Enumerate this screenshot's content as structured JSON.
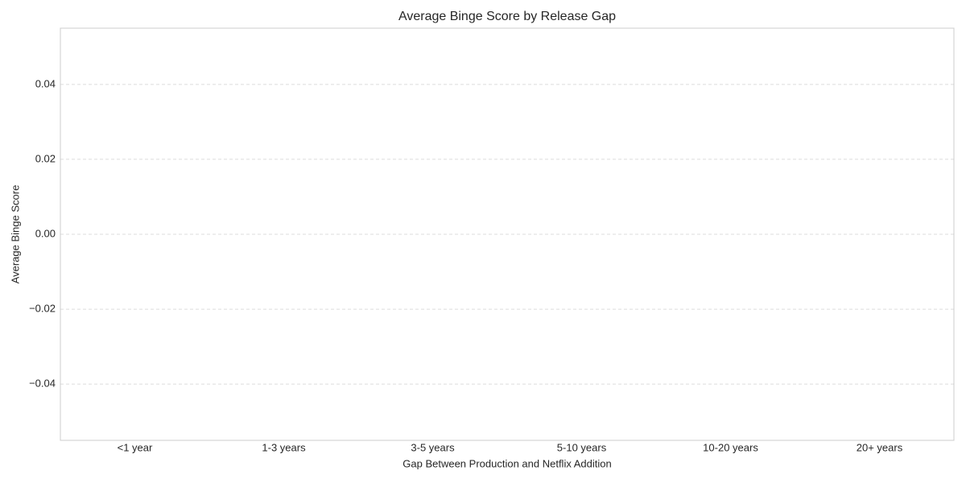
{
  "chart_data": {
    "type": "bar",
    "title": "Average Binge Score by Release Gap",
    "xlabel": "Gap Between Production and Netflix Addition",
    "ylabel": "Average Binge Score",
    "categories": [
      "<1 year",
      "1-3 years",
      "3-5 years",
      "5-10 years",
      "10-20 years",
      "20+ years"
    ],
    "values": [
      0,
      0,
      0,
      0,
      0,
      0
    ],
    "color": "#4c72b0",
    "ylim": [
      -0.055,
      0.055
    ],
    "yticks": [
      {
        "value": -0.04,
        "label": "−0.04"
      },
      {
        "value": -0.02,
        "label": "−0.02"
      },
      {
        "value": 0,
        "label": "0.00"
      },
      {
        "value": 0.02,
        "label": "0.02"
      },
      {
        "value": 0.04,
        "label": "0.04"
      }
    ],
    "grid": true
  }
}
